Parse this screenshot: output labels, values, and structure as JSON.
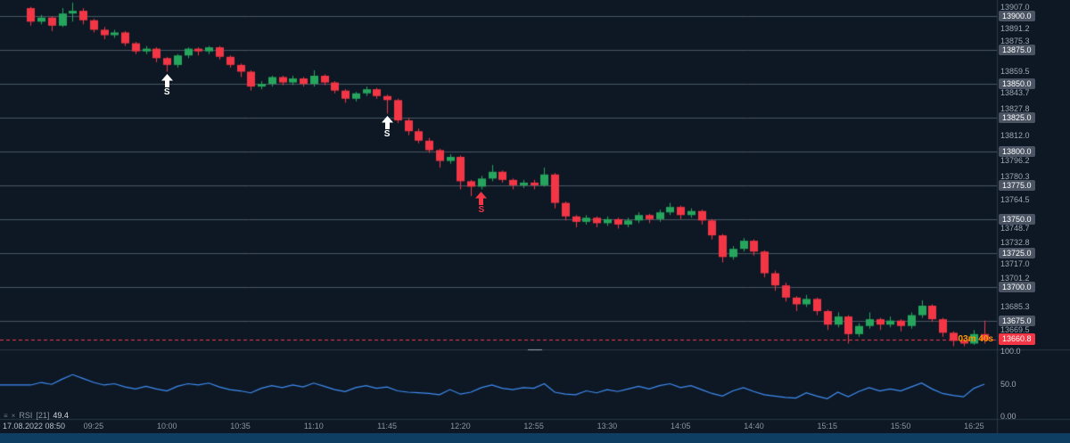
{
  "colors": {
    "bg": "#0d1824",
    "grid": "#4b5663",
    "separator": "#2b3644",
    "green": "#26a65d",
    "red": "#f23645",
    "rsi_line": "#3f8cf3",
    "countdown": "#ff9800",
    "badge_bg": "#4a5463"
  },
  "ui": {
    "date_label": "17.08.2022 08:50",
    "countdown": "03m 40s",
    "current_price_label": "13660.8",
    "rsi_legend": {
      "name": "RSI",
      "period": "[21]",
      "value": "49.4"
    }
  },
  "chart_data": {
    "type": "candlestick",
    "title": "",
    "interval": "5m",
    "start_time": "08:55",
    "ohlc_columns": [
      "open",
      "high",
      "low",
      "close"
    ],
    "ylim": [
      13655,
      13912
    ],
    "current_price": 13660.8,
    "price_axis_ticks": [
      "13907.0",
      "13891.2",
      "13875.3",
      "13859.5",
      "13843.7",
      "13827.8",
      "13812.0",
      "13796.2",
      "13780.3",
      "13764.5",
      "13748.7",
      "13732.8",
      "13717.0",
      "13701.2",
      "13685.3",
      "13669.5"
    ],
    "strike_lines": [
      13900,
      13875,
      13850,
      13825,
      13800,
      13775,
      13750,
      13725,
      13700,
      13675
    ],
    "x_time_labels": [
      {
        "i": 6,
        "t": "09:25"
      },
      {
        "i": 13,
        "t": "10:00"
      },
      {
        "i": 20,
        "t": "10:35"
      },
      {
        "i": 27,
        "t": "11:10"
      },
      {
        "i": 34,
        "t": "11:45"
      },
      {
        "i": 41,
        "t": "12:20"
      },
      {
        "i": 48,
        "t": "12:55"
      },
      {
        "i": 55,
        "t": "13:30"
      },
      {
        "i": 62,
        "t": "14:05"
      },
      {
        "i": 69,
        "t": "14:40"
      },
      {
        "i": 76,
        "t": "15:15"
      },
      {
        "i": 83,
        "t": "15:50"
      },
      {
        "i": 90,
        "t": "16:25"
      }
    ],
    "markers": [
      {
        "i": 13,
        "label": "S",
        "color": "#ffffff"
      },
      {
        "i": 34,
        "label": "S",
        "color": "#ffffff"
      },
      {
        "i": 43,
        "label": "S",
        "color": "#f23645"
      }
    ],
    "candles_ohlc": [
      [
        13906,
        13907,
        13893,
        13896
      ],
      [
        13896,
        13901,
        13894,
        13899
      ],
      [
        13899,
        13900,
        13889,
        13893
      ],
      [
        13893,
        13906,
        13892,
        13902
      ],
      [
        13902,
        13910,
        13896,
        13904
      ],
      [
        13904,
        13906,
        13894,
        13897
      ],
      [
        13897,
        13898,
        13888,
        13890
      ],
      [
        13890,
        13892,
        13883,
        13886
      ],
      [
        13886,
        13890,
        13884,
        13888
      ],
      [
        13888,
        13889,
        13878,
        13880
      ],
      [
        13880,
        13881,
        13872,
        13874
      ],
      [
        13874,
        13878,
        13872,
        13876
      ],
      [
        13876,
        13877,
        13866,
        13869
      ],
      [
        13869,
        13870,
        13859,
        13864
      ],
      [
        13864,
        13872,
        13862,
        13871
      ],
      [
        13871,
        13877,
        13869,
        13876
      ],
      [
        13876,
        13877,
        13871,
        13874
      ],
      [
        13874,
        13878,
        13872,
        13877
      ],
      [
        13877,
        13878,
        13868,
        13870
      ],
      [
        13870,
        13871,
        13862,
        13864
      ],
      [
        13864,
        13865,
        13855,
        13859
      ],
      [
        13859,
        13860,
        13845,
        13848
      ],
      [
        13848,
        13852,
        13846,
        13850
      ],
      [
        13850,
        13856,
        13848,
        13855
      ],
      [
        13855,
        13856,
        13849,
        13851
      ],
      [
        13851,
        13856,
        13849,
        13854
      ],
      [
        13854,
        13855,
        13848,
        13850
      ],
      [
        13850,
        13860,
        13848,
        13856
      ],
      [
        13856,
        13857,
        13849,
        13851
      ],
      [
        13851,
        13852,
        13843,
        13845
      ],
      [
        13845,
        13846,
        13836,
        13839
      ],
      [
        13839,
        13844,
        13837,
        13843
      ],
      [
        13843,
        13848,
        13841,
        13846
      ],
      [
        13846,
        13847,
        13839,
        13841
      ],
      [
        13841,
        13842,
        13828,
        13838
      ],
      [
        13838,
        13839,
        13821,
        13823
      ],
      [
        13823,
        13825,
        13812,
        13815
      ],
      [
        13815,
        13817,
        13806,
        13808
      ],
      [
        13808,
        13810,
        13799,
        13801
      ],
      [
        13801,
        13802,
        13788,
        13793
      ],
      [
        13793,
        13798,
        13791,
        13796
      ],
      [
        13796,
        13797,
        13772,
        13778
      ],
      [
        13778,
        13779,
        13767,
        13774
      ],
      [
        13774,
        13782,
        13772,
        13780
      ],
      [
        13780,
        13790,
        13778,
        13785
      ],
      [
        13785,
        13786,
        13777,
        13779
      ],
      [
        13779,
        13780,
        13772,
        13775
      ],
      [
        13775,
        13779,
        13773,
        13777
      ],
      [
        13777,
        13779,
        13772,
        13775
      ],
      [
        13775,
        13788,
        13774,
        13783
      ],
      [
        13783,
        13784,
        13758,
        13762
      ],
      [
        13762,
        13763,
        13749,
        13752
      ],
      [
        13752,
        13753,
        13744,
        13748
      ],
      [
        13748,
        13753,
        13746,
        13751
      ],
      [
        13751,
        13752,
        13744,
        13747
      ],
      [
        13747,
        13752,
        13745,
        13750
      ],
      [
        13750,
        13751,
        13743,
        13746
      ],
      [
        13746,
        13751,
        13744,
        13749
      ],
      [
        13749,
        13755,
        13747,
        13753
      ],
      [
        13753,
        13754,
        13747,
        13750
      ],
      [
        13750,
        13757,
        13748,
        13755
      ],
      [
        13755,
        13762,
        13753,
        13759
      ],
      [
        13759,
        13760,
        13750,
        13753
      ],
      [
        13753,
        13758,
        13751,
        13756
      ],
      [
        13756,
        13757,
        13746,
        13749
      ],
      [
        13749,
        13750,
        13735,
        13738
      ],
      [
        13738,
        13739,
        13718,
        13722
      ],
      [
        13722,
        13730,
        13720,
        13728
      ],
      [
        13728,
        13736,
        13726,
        13734
      ],
      [
        13734,
        13735,
        13723,
        13726
      ],
      [
        13726,
        13727,
        13707,
        13710
      ],
      [
        13710,
        13712,
        13697,
        13701
      ],
      [
        13701,
        13703,
        13689,
        13692
      ],
      [
        13692,
        13693,
        13682,
        13687
      ],
      [
        13687,
        13694,
        13685,
        13691
      ],
      [
        13691,
        13692,
        13679,
        13682
      ],
      [
        13682,
        13683,
        13668,
        13672
      ],
      [
        13672,
        13681,
        13670,
        13678
      ],
      [
        13678,
        13679,
        13658,
        13665
      ],
      [
        13665,
        13673,
        13663,
        13671
      ],
      [
        13671,
        13681,
        13669,
        13676
      ],
      [
        13676,
        13677,
        13668,
        13672
      ],
      [
        13672,
        13678,
        13670,
        13675
      ],
      [
        13675,
        13676,
        13667,
        13671
      ],
      [
        13671,
        13681,
        13669,
        13679
      ],
      [
        13679,
        13690,
        13677,
        13686
      ],
      [
        13686,
        13687,
        13674,
        13676
      ],
      [
        13676,
        13677,
        13663,
        13666
      ],
      [
        13666,
        13667,
        13656,
        13660
      ],
      [
        13660,
        13662,
        13656,
        13658
      ],
      [
        13658,
        13668,
        13657,
        13665
      ],
      [
        13665,
        13675,
        13658,
        13660.8
      ]
    ],
    "rsi": {
      "period": 21,
      "value": 49.4,
      "range": [
        0,
        100
      ],
      "levels": [
        {
          "v": 100,
          "t": "100.0"
        },
        {
          "v": 50,
          "t": "50.0"
        },
        {
          "v": 0,
          "t": "0.00"
        }
      ],
      "values": [
        48,
        52,
        49,
        57,
        64,
        58,
        52,
        48,
        50,
        45,
        42,
        46,
        42,
        39,
        46,
        50,
        48,
        51,
        45,
        41,
        39,
        36,
        43,
        47,
        44,
        48,
        45,
        51,
        46,
        41,
        38,
        44,
        47,
        43,
        45,
        39,
        37,
        36,
        35,
        33,
        41,
        34,
        37,
        44,
        48,
        43,
        41,
        44,
        43,
        50,
        37,
        34,
        33,
        39,
        36,
        41,
        38,
        42,
        46,
        42,
        47,
        50,
        44,
        47,
        41,
        35,
        31,
        39,
        44,
        38,
        33,
        31,
        29,
        28,
        36,
        31,
        27,
        37,
        30,
        38,
        44,
        39,
        42,
        39,
        45,
        51,
        42,
        35,
        32,
        30,
        43,
        49.4
      ]
    }
  }
}
